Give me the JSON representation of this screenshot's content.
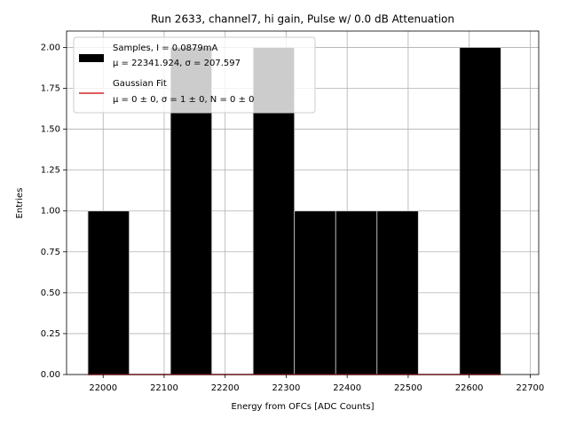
{
  "chart_data": {
    "type": "histogram",
    "title": "Run 2633, channel7, hi gain, Pulse w/ 0.0 dB Attenuation",
    "x_label": "Energy from OFCs [ADC Counts]",
    "y_label": "Entries",
    "bins": [
      21975,
      22042.7,
      22110.4,
      22178.1,
      22245.8,
      22313.5,
      22381.2,
      22448.9,
      22516.6,
      22584.3,
      22652
    ],
    "series": [
      {
        "name": [
          "Samples, I = 0.0879mA",
          "μ = 22341.924, σ = 207.597"
        ],
        "color": "#000000",
        "values": [
          1,
          0,
          2,
          0,
          2,
          1,
          1,
          1,
          0,
          2
        ]
      }
    ],
    "fit": {
      "name": [
        "Gaussian Fit",
        "μ = 0 ± 0, σ = 1 ± 0, N = 0 ± 0"
      ],
      "color": "#d62728",
      "x": [
        21975,
        22652
      ],
      "values": [
        0,
        0
      ]
    },
    "xlim": [
      21940,
      22714
    ],
    "ylim": [
      0,
      2.1
    ],
    "xticks": [
      22000,
      22100,
      22200,
      22300,
      22400,
      22500,
      22600,
      22700
    ],
    "yticks": [
      {
        "value": 0,
        "label": "0.00"
      },
      {
        "value": 0.25,
        "label": "0.25"
      },
      {
        "value": 0.5,
        "label": "0.50"
      },
      {
        "value": 0.75,
        "label": "0.75"
      },
      {
        "value": 1,
        "label": "1.00"
      },
      {
        "value": 1.25,
        "label": "1.25"
      },
      {
        "value": 1.5,
        "label": "1.50"
      },
      {
        "value": 1.75,
        "label": "1.75"
      },
      {
        "value": 2,
        "label": "2.00"
      }
    ],
    "grid": true
  }
}
